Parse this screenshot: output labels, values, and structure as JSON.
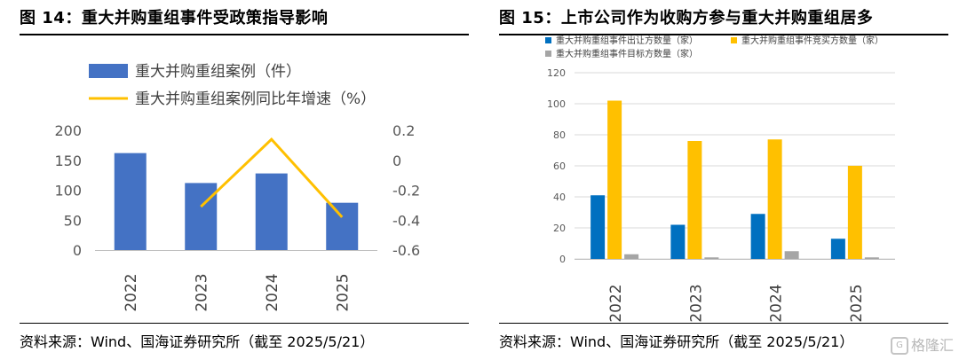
{
  "left": {
    "title": "图 14：重大并购重组事件受政策指导影响",
    "source": "资料来源：Wind、国海证券研究所（截至 2025/5/21）"
  },
  "right": {
    "title": "图 15：上市公司作为收购方参与重大并购重组居多",
    "source": "资料来源：Wind、国海证券研究所（截至 2025/5/21）"
  },
  "watermark": {
    "icon": "G",
    "text": "格隆汇"
  },
  "colors": {
    "blue_dark": "#4472C4",
    "blue": "#0070C0",
    "gold": "#FFC000",
    "gray": "#A5A5A5",
    "grid": "#D9D9D9",
    "tick_text": "#595959"
  },
  "chart_data": [
    {
      "type": "bar",
      "categories": [
        "2022",
        "2023",
        "2024",
        "2025"
      ],
      "series": [
        {
          "name": "重大并购重组案例（件）",
          "type": "bar",
          "axis": "left",
          "values": [
            162,
            112,
            128,
            79
          ]
        },
        {
          "name": "重大并购重组案例同比年增速（%）",
          "type": "line",
          "axis": "right",
          "values": [
            null,
            -0.31,
            0.14,
            -0.38
          ]
        }
      ],
      "ylim": [
        0,
        200
      ],
      "yticks": [
        "200",
        "150",
        "100",
        "50",
        "0"
      ],
      "y2lim": [
        -0.6,
        0.2
      ],
      "y2ticks": [
        "0.2",
        "0",
        "-0.2",
        "-0.4",
        "-0.6"
      ],
      "grid": false,
      "legend": "top-left"
    },
    {
      "type": "bar",
      "categories": [
        "2022",
        "2023",
        "2024",
        "2025"
      ],
      "series": [
        {
          "name": "重大并购重组事件出让方数量（家）",
          "values": [
            41,
            22,
            29,
            13
          ]
        },
        {
          "name": "重大并购重组事件竞买方数量（家）",
          "values": [
            102,
            76,
            77,
            60
          ]
        },
        {
          "name": "重大并购重组事件目标方数量（家）",
          "values": [
            3,
            1,
            5,
            1
          ]
        }
      ],
      "ylim": [
        0,
        120
      ],
      "yticks": [
        "120",
        "100",
        "80",
        "60",
        "40",
        "20",
        "0"
      ],
      "grid": true,
      "legend": "top"
    }
  ]
}
